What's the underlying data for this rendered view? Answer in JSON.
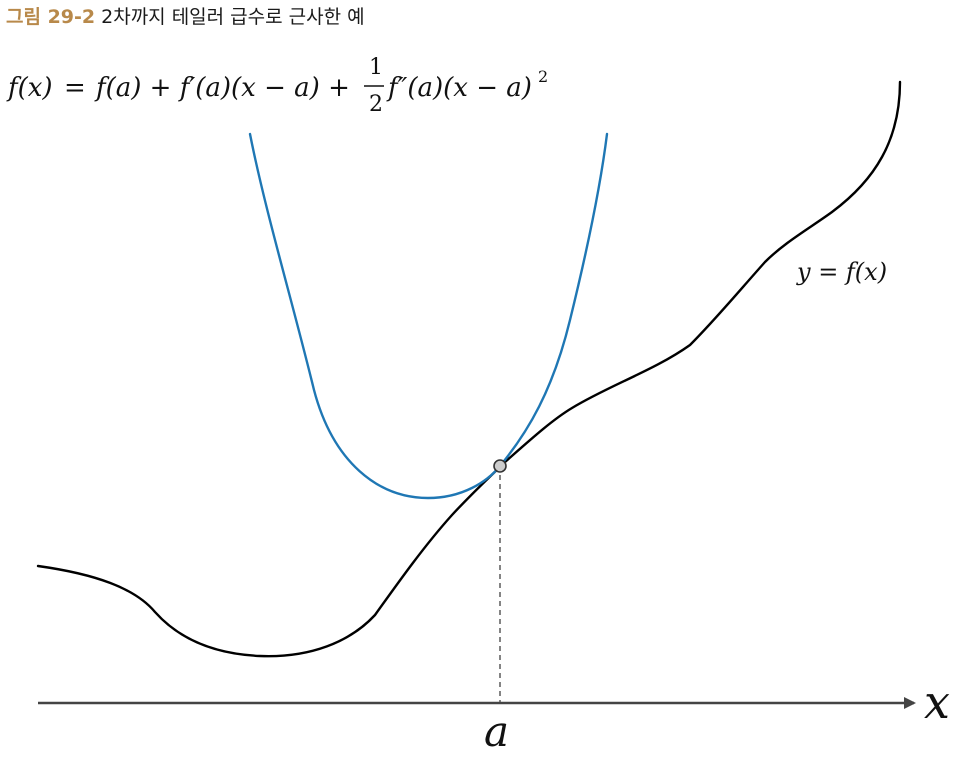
{
  "caption": {
    "number": "그림 29-2",
    "title": "2차까지 테일러 급수로 근사한 예"
  },
  "formula": {
    "lhs": "f(x)",
    "equals": "=",
    "term1": "f(a) + f′(a)(x − a) +",
    "frac_num": "1",
    "frac_den": "2",
    "term2": "f″(a)(x − a)",
    "exponent": "2"
  },
  "labels": {
    "curve": "y = f(x)",
    "x_axis": "x",
    "point": "a"
  },
  "colors": {
    "original_curve": "#000000",
    "approximation_curve": "#1f77b4",
    "axis": "#444444",
    "point_fill": "#cccccc",
    "caption_accent": "#b8894a"
  }
}
